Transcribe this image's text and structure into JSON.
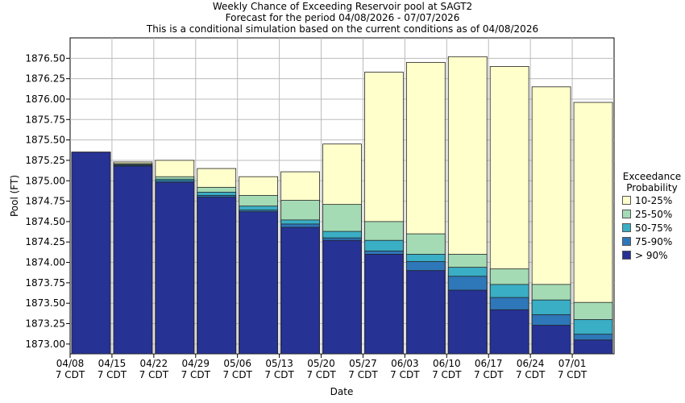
{
  "title_lines": [
    "Weekly Chance of Exceeding Reservoir pool at SAGT2",
    "Forecast for the period 04/08/2026 - 07/07/2026",
    "This is a conditional simulation based on the current conditions as of 04/08/2026"
  ],
  "chart_data": {
    "type": "bar",
    "title": "Weekly Chance of Exceeding Reservoir pool at SAGT2",
    "subtitle": "Forecast for the period 04/08/2026 - 07/07/2026 | This is a conditional simulation based on the current conditions as of 04/08/2026",
    "xlabel": "Date",
    "ylabel": "Pool (FT)",
    "ylim": [
      1872.88,
      1876.75
    ],
    "yticks": [
      "1873.00",
      "1873.25",
      "1873.50",
      "1873.75",
      "1874.00",
      "1874.25",
      "1874.50",
      "1874.75",
      "1875.00",
      "1875.25",
      "1875.50",
      "1875.75",
      "1876.00",
      "1876.25",
      "1876.50"
    ],
    "categories": [
      "04/08",
      "04/15",
      "04/22",
      "04/29",
      "05/06",
      "05/13",
      "05/20",
      "05/27",
      "06/03",
      "06/10",
      "06/17",
      "06/24",
      "07/01"
    ],
    "category_sublabel": "7 CDT",
    "grid": true,
    "legend_title": "Exceedance Probability",
    "legend_placement": "right",
    "series": [
      {
        "name": "> 90%",
        "color": "#263294",
        "values": [
          1875.35,
          1875.18,
          1874.98,
          1874.8,
          1874.62,
          1874.43,
          1874.27,
          1874.1,
          1873.9,
          1873.66,
          1873.42,
          1873.23,
          1873.05
        ]
      },
      {
        "name": "75-90%",
        "color": "#2e77b8",
        "values": [
          1875.35,
          1875.19,
          1875.0,
          1874.82,
          1874.64,
          1874.47,
          1874.3,
          1874.14,
          1874.01,
          1873.83,
          1873.57,
          1873.36,
          1873.12
        ]
      },
      {
        "name": "50-75%",
        "color": "#3aaec4",
        "values": [
          1875.35,
          1875.2,
          1875.02,
          1874.86,
          1874.69,
          1874.52,
          1874.38,
          1874.27,
          1874.1,
          1873.94,
          1873.73,
          1873.54,
          1873.3
        ]
      },
      {
        "name": "25-50%",
        "color": "#a4dbb5",
        "values": [
          1875.35,
          1875.21,
          1875.05,
          1874.92,
          1874.82,
          1874.76,
          1874.71,
          1874.5,
          1874.35,
          1874.1,
          1873.92,
          1873.73,
          1873.51
        ]
      },
      {
        "name": "10-25%",
        "color": "#ffffcc",
        "values": [
          1875.35,
          1875.23,
          1875.25,
          1875.15,
          1875.05,
          1875.11,
          1875.45,
          1876.33,
          1876.45,
          1876.52,
          1876.4,
          1876.15,
          1875.96
        ]
      }
    ]
  }
}
